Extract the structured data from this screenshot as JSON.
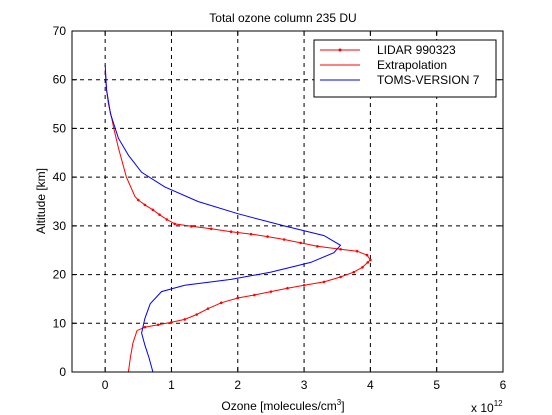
{
  "chart_data": {
    "type": "line",
    "title": "Total ozone column 235 DU",
    "xlabel": "Ozone [molecules/cm",
    "xlabel_sup": "3",
    "xlabel_suffix": "]",
    "ylabel": "Altitude [km]",
    "x_multiplier": "x 10",
    "x_multiplier_exp": "12",
    "xlim": [
      -0.5,
      6
    ],
    "ylim": [
      0,
      70
    ],
    "xticks": [
      0,
      1,
      2,
      3,
      4,
      5,
      6
    ],
    "yticks": [
      0,
      10,
      20,
      30,
      40,
      50,
      60,
      70
    ],
    "xtick_labels": [
      "0",
      "1",
      "2",
      "3",
      "4",
      "5",
      "6"
    ],
    "ytick_labels": [
      "0",
      "10",
      "20",
      "30",
      "40",
      "50",
      "60",
      "70"
    ],
    "grid": true,
    "grid_style": "dashed",
    "legend_position": "top-right",
    "series": [
      {
        "name": "LIDAR 990323",
        "color": "#ff0000",
        "marker": "dot",
        "points": [
          [
            4.0,
            23
          ],
          [
            3.96,
            22.5
          ],
          [
            3.88,
            21.5
          ],
          [
            3.75,
            20.5
          ],
          [
            3.55,
            19.5
          ],
          [
            3.3,
            18.5
          ],
          [
            3.0,
            17.8
          ],
          [
            2.75,
            17.2
          ],
          [
            2.5,
            16.5
          ],
          [
            2.25,
            15.8
          ],
          [
            2.0,
            15.2
          ],
          [
            1.75,
            14.2
          ],
          [
            1.55,
            13
          ],
          [
            1.38,
            11.8
          ],
          [
            1.2,
            10.8
          ],
          [
            1.0,
            10.2
          ],
          [
            0.8,
            9.7
          ],
          [
            0.6,
            9.2
          ],
          [
            3.95,
            24
          ],
          [
            3.8,
            24.8
          ],
          [
            3.55,
            25.2
          ],
          [
            3.2,
            25.8
          ],
          [
            2.95,
            26.5
          ],
          [
            2.7,
            27.2
          ],
          [
            2.45,
            27.8
          ],
          [
            2.2,
            28.3
          ],
          [
            1.9,
            28.8
          ],
          [
            1.6,
            29.4
          ],
          [
            1.3,
            29.9
          ],
          [
            1.05,
            30.4
          ],
          [
            0.93,
            31.3
          ],
          [
            0.82,
            32.3
          ],
          [
            0.72,
            33.3
          ],
          [
            0.6,
            34.3
          ],
          [
            0.5,
            35.3
          ]
        ]
      },
      {
        "name": "Extrapolation",
        "color": "#ff0000",
        "marker": "none",
        "points": [
          [
            0.35,
            0
          ],
          [
            0.38,
            3
          ],
          [
            0.42,
            6
          ],
          [
            0.48,
            8.5
          ],
          [
            0.6,
            9.2
          ],
          [
            0.1,
            52
          ],
          [
            0.13,
            50
          ],
          [
            0.2,
            46
          ],
          [
            0.32,
            40
          ],
          [
            0.45,
            36
          ],
          [
            0.5,
            35.3
          ],
          [
            0.05,
            55
          ],
          [
            0.02,
            58
          ],
          [
            0.0,
            62
          ]
        ]
      },
      {
        "name": "TOMS-VERSION 7",
        "color": "#0000ff",
        "marker": "none",
        "points": [
          [
            0.72,
            0
          ],
          [
            0.66,
            3
          ],
          [
            0.6,
            5.5
          ],
          [
            0.55,
            8
          ],
          [
            0.6,
            11
          ],
          [
            0.68,
            14
          ],
          [
            0.85,
            16.5
          ],
          [
            1.2,
            17.8
          ],
          [
            1.9,
            19
          ],
          [
            2.5,
            20.5
          ],
          [
            3.1,
            22.5
          ],
          [
            3.45,
            24.5
          ],
          [
            3.55,
            26
          ],
          [
            3.3,
            28
          ],
          [
            2.7,
            30
          ],
          [
            2.0,
            32.5
          ],
          [
            1.4,
            35
          ],
          [
            0.9,
            38
          ],
          [
            0.55,
            41
          ],
          [
            0.35,
            44.5
          ],
          [
            0.2,
            48
          ],
          [
            0.08,
            53
          ],
          [
            0.02,
            58
          ],
          [
            0.0,
            63
          ]
        ]
      }
    ]
  }
}
